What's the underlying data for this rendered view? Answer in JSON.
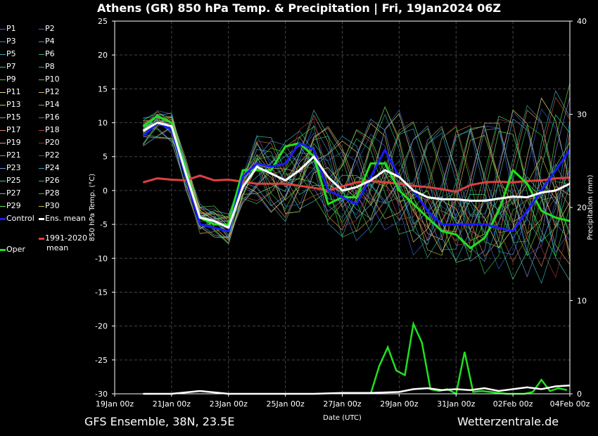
{
  "title": "Athens  (GR)  850 hPa Temp. & Precipitation | Fri, 19Jan2024 06Z",
  "footer": {
    "left": "GFS Ensemble, 38N, 23.5E",
    "right": "Wetterzentrale.de"
  },
  "legend": {
    "members": [
      {
        "label": "P1",
        "color": "#3f5fd0"
      },
      {
        "label": "P2",
        "color": "#3f5fd0"
      },
      {
        "label": "P3",
        "color": "#3f7fd0"
      },
      {
        "label": "P4",
        "color": "#2f9fcf"
      },
      {
        "label": "P5",
        "color": "#3fb0c0"
      },
      {
        "label": "P6",
        "color": "#2fb090"
      },
      {
        "label": "P7",
        "color": "#3fd070"
      },
      {
        "label": "P8",
        "color": "#30c050"
      },
      {
        "label": "P9",
        "color": "#40d040"
      },
      {
        "label": "P10",
        "color": "#60d030"
      },
      {
        "label": "P11",
        "color": "#e0e080"
      },
      {
        "label": "P12",
        "color": "#e0c060"
      },
      {
        "label": "P13",
        "color": "#e0b070"
      },
      {
        "label": "P14",
        "color": "#d09050"
      },
      {
        "label": "P15",
        "color": "#d08060"
      },
      {
        "label": "P16",
        "color": "#c06030"
      },
      {
        "label": "P17",
        "color": "#e08070"
      },
      {
        "label": "P18",
        "color": "#b04040"
      },
      {
        "label": "P19",
        "color": "#e0a0a0"
      },
      {
        "label": "P20",
        "color": "#a03030"
      },
      {
        "label": "P21",
        "color": "#8080e0"
      },
      {
        "label": "P22",
        "color": "#3060c0"
      },
      {
        "label": "P23",
        "color": "#60a0e0"
      },
      {
        "label": "P24",
        "color": "#40a0d0"
      },
      {
        "label": "P25",
        "color": "#40c0c0"
      },
      {
        "label": "P26",
        "color": "#30b0a0"
      },
      {
        "label": "P27",
        "color": "#40d080"
      },
      {
        "label": "P28",
        "color": "#30c040"
      },
      {
        "label": "P29",
        "color": "#60e060"
      },
      {
        "label": "P30",
        "color": "#c0c040"
      }
    ],
    "control": {
      "label": "Control",
      "color": "#1a1aff"
    },
    "ens_mean": {
      "label": "Ens. mean",
      "color": "#ffffff"
    },
    "climate": {
      "label_line1": "1991-2020",
      "label_line2": "mean",
      "color": "#e04040"
    },
    "oper": {
      "label": "Oper",
      "color": "#20e020"
    }
  },
  "chart_data": {
    "type": "line",
    "xlabel": "Date (UTC)",
    "ylabel": "850 hPa Temp. (°C)",
    "ylabel_right": "Precipitation (mm)",
    "x_ticks": [
      "19Jan 00z",
      "21Jan 00z",
      "23Jan 00z",
      "25Jan 00z",
      "27Jan 00z",
      "29Jan 00z",
      "31Jan 00z",
      "02Feb 00z",
      "04Feb 00z"
    ],
    "xlim_days": [
      0,
      16
    ],
    "ylim": [
      -30,
      25
    ],
    "y_ticks": [
      -30,
      -25,
      -20,
      -15,
      -10,
      -5,
      0,
      5,
      10,
      15,
      20,
      25
    ],
    "ylim_right": [
      0,
      40
    ],
    "y_ticks_right": [
      0,
      10,
      20,
      30,
      40
    ],
    "grid": true,
    "series": [
      {
        "name": "Oper",
        "color": "#20e020",
        "x": [
          1.0,
          1.5,
          2.0,
          2.5,
          3.0,
          3.5,
          4.0,
          4.5,
          5.0,
          5.5,
          6.0,
          6.5,
          7.0,
          7.5,
          8.0,
          8.5,
          9.0,
          9.5,
          10.0,
          10.5,
          11.0,
          11.5,
          12.0,
          12.5,
          13.0,
          13.5,
          14.0,
          14.5,
          15.0,
          15.5,
          16.0
        ],
        "values": [
          9.5,
          11,
          10,
          3,
          -4,
          -5,
          -5,
          3,
          3,
          3,
          6.5,
          7,
          5,
          -2,
          -1,
          -1,
          4,
          4,
          0,
          -2,
          -4,
          -6,
          -6.5,
          -8.5,
          -7,
          -3,
          3,
          1,
          -3,
          -4,
          -4.5
        ]
      },
      {
        "name": "Control",
        "color": "#1a1aff",
        "x": [
          1.0,
          1.5,
          2.0,
          2.5,
          3.0,
          3.5,
          4.0,
          4.5,
          5.0,
          5.5,
          6.0,
          6.5,
          7.0,
          7.5,
          8.0,
          8.5,
          9.0,
          9.5,
          10.0,
          10.5,
          11.0,
          11.5,
          12.0,
          12.5,
          13.0,
          13.5,
          14.0,
          14.5,
          15.0,
          15.5,
          16.0
        ],
        "values": [
          8,
          10,
          9,
          2,
          -5,
          -5.5,
          -6,
          2,
          4,
          3.5,
          4,
          7,
          6,
          0,
          -1,
          -2,
          2,
          6,
          2,
          0,
          -3,
          -5,
          -5,
          -5,
          -5,
          -5.5,
          -6,
          -3,
          0,
          3,
          6
        ]
      },
      {
        "name": "Ens. mean",
        "color": "#ffffff",
        "x": [
          1.0,
          1.5,
          2.0,
          2.5,
          3.0,
          3.5,
          4.0,
          4.5,
          5.0,
          5.5,
          6.0,
          6.5,
          7.0,
          7.5,
          8.0,
          8.5,
          9.0,
          9.5,
          10.0,
          10.5,
          11.0,
          11.5,
          12.0,
          12.5,
          13.0,
          13.5,
          14.0,
          14.5,
          15.0,
          15.5,
          16.0
        ],
        "values": [
          8.8,
          10,
          9.5,
          2.5,
          -4,
          -4.5,
          -5.5,
          0.5,
          3.5,
          2.5,
          1.5,
          3,
          5,
          2,
          0,
          0.5,
          1.5,
          3,
          2,
          0,
          -1,
          -1.3,
          -1.3,
          -1.5,
          -1.5,
          -1.2,
          -0.9,
          -1,
          -0.3,
          0,
          1
        ]
      },
      {
        "name": "1991-2020 mean",
        "color": "#e04040",
        "x": [
          1.0,
          1.5,
          2.0,
          2.5,
          3.0,
          3.5,
          4.0,
          4.5,
          5.0,
          5.5,
          6.0,
          6.5,
          7.0,
          7.5,
          8.0,
          8.5,
          9.0,
          9.5,
          10.0,
          10.5,
          11.0,
          11.5,
          12.0,
          12.5,
          13.0,
          13.5,
          14.0,
          14.5,
          15.0,
          15.5,
          16.0
        ],
        "values": [
          1.2,
          1.8,
          1.6,
          1.5,
          2.2,
          1.5,
          1.6,
          1.3,
          1,
          1,
          1,
          0.7,
          0.4,
          0,
          0.6,
          1.2,
          1.4,
          1.2,
          1,
          0.7,
          0.5,
          0.2,
          -0.2,
          0.8,
          1.2,
          1.3,
          1.2,
          1.4,
          1.5,
          1.8,
          1.9
        ]
      }
    ],
    "precip": [
      {
        "name": "Oper",
        "color": "#20e020",
        "x": [
          9.0,
          9.3,
          9.6,
          9.9,
          10.2,
          10.5,
          10.8,
          11.1,
          11.4,
          11.7,
          12.0,
          12.3,
          12.6,
          12.9,
          13.2,
          13.5,
          13.8,
          14.1,
          14.4,
          14.7,
          15.0,
          15.3,
          15.6,
          15.9
        ],
        "values": [
          0,
          3,
          5,
          2.5,
          2,
          7.5,
          5.5,
          0.5,
          0.3,
          0.5,
          0,
          4.5,
          0.2,
          0.3,
          0.2,
          0.1,
          0,
          0,
          0,
          0.2,
          1.5,
          0.3,
          0.6,
          0.4
        ]
      },
      {
        "name": "Ens. mean",
        "color": "#ffffff",
        "x": [
          1.0,
          2.0,
          3.0,
          4.0,
          5.0,
          6.0,
          7.0,
          8.0,
          9.0,
          10.0,
          10.5,
          11.0,
          11.5,
          12.0,
          12.5,
          13.0,
          13.5,
          14.0,
          14.5,
          15.0,
          15.5,
          16.0
        ],
        "values": [
          0,
          0,
          0.3,
          0,
          0,
          0,
          0,
          0.1,
          0.1,
          0.2,
          0.5,
          0.6,
          0.4,
          0.5,
          0.4,
          0.6,
          0.3,
          0.5,
          0.7,
          0.5,
          0.8,
          0.9
        ]
      }
    ]
  }
}
